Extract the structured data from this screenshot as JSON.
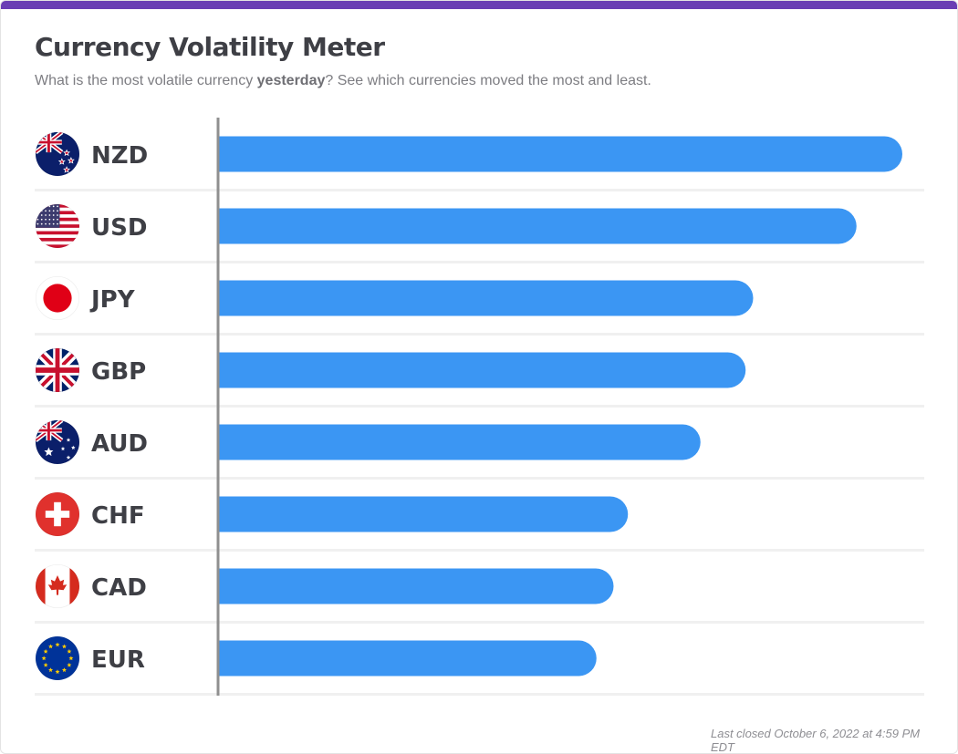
{
  "header": {
    "title": "Currency Volatility Meter",
    "subtitle_before": "What is the most volatile currency ",
    "subtitle_bold": "yesterday",
    "subtitle_after": "? See which currencies moved the most and least."
  },
  "footer": {
    "last_closed": "Last closed October 6, 2022 at 4:59 PM EDT"
  },
  "colors": {
    "accent_bar": "#6a3fb4",
    "bar": "#3b96f3",
    "title": "#3e3f45",
    "axis": "#8f8f8f"
  },
  "chart_data": {
    "type": "bar",
    "orientation": "horizontal",
    "categories": [
      "NZD",
      "USD",
      "JPY",
      "GBP",
      "AUD",
      "CHF",
      "CAD",
      "EUR"
    ],
    "flags": [
      "nz-flag-icon",
      "us-flag-icon",
      "jp-flag-icon",
      "gb-flag-icon",
      "au-flag-icon",
      "ch-flag-icon",
      "ca-flag-icon",
      "eu-flag-icon"
    ],
    "values": [
      1.0,
      0.933,
      0.782,
      0.771,
      0.705,
      0.599,
      0.578,
      0.553
    ],
    "xlim": [
      0,
      1.0
    ],
    "grid": false,
    "value_labels": false
  }
}
